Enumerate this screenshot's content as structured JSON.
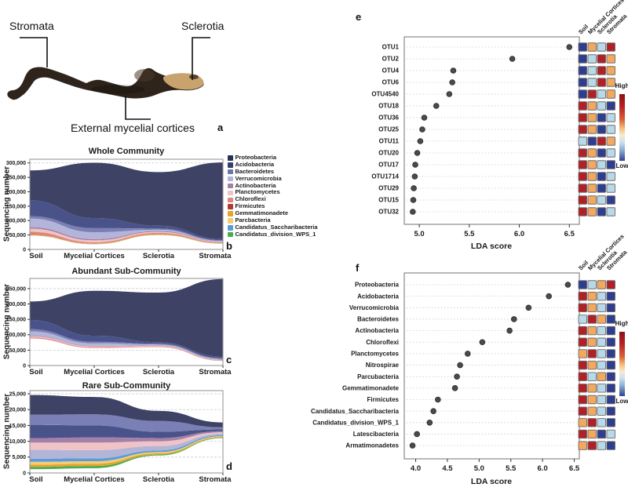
{
  "panel_a": {
    "letter": "a",
    "stromata": "Stromata",
    "sclerotia": "Sclerotia",
    "cortices": "External mycelial cortices"
  },
  "legend": {
    "items": [
      {
        "label": "Proteobacteria",
        "color": "#273156"
      },
      {
        "label": "Acidobacteria",
        "color": "#31406f"
      },
      {
        "label": "Bacteroidetes",
        "color": "#6f74ab"
      },
      {
        "label": "Verrucomicrobia",
        "color": "#b3b5d8"
      },
      {
        "label": "Actinobacteria",
        "color": "#a47fa8"
      },
      {
        "label": "Planctomycetes",
        "color": "#f0c4c6"
      },
      {
        "label": "Chloroflexi",
        "color": "#e0857a"
      },
      {
        "label": "Firmicutes",
        "color": "#ae3a33"
      },
      {
        "label": "Gemmatimonadete",
        "color": "#e8a230"
      },
      {
        "label": "Parcbacteria",
        "color": "#f2cd76"
      },
      {
        "label": "Candidatus_Saccharibacteria",
        "color": "#5b9cd6"
      },
      {
        "label": "Candidatus_division_WPS_1",
        "color": "#49ad4d"
      }
    ]
  },
  "heat_palette": {
    "R": "#b02026",
    "O": "#f3a85f",
    "L": "#b9d9e8",
    "B": "#2e3d8f"
  },
  "chart_data": [
    {
      "type": "area",
      "letter": "b",
      "title": "Whole Community",
      "ylabel": "Sequencing number",
      "categories": [
        "Soil",
        "Mycelial Cortices",
        "Sclerotia",
        "Stromata"
      ],
      "y_ticks": [
        0,
        50000,
        100000,
        150000,
        200000,
        250000,
        300000
      ],
      "y_tick_labels": [
        "0",
        "50,000",
        "100,000",
        "150,000",
        "200,000",
        "250,000",
        "300,000"
      ],
      "baseline": [
        48000,
        18000,
        50000,
        20000
      ],
      "series": [
        {
          "name": "Candidatus_division_WPS_1",
          "color": "#49ad4d",
          "values": [
            400,
            300,
            300,
            300
          ]
        },
        {
          "name": "Candidatus_Saccharibacteria",
          "color": "#5b9cd6",
          "values": [
            500,
            400,
            300,
            300
          ]
        },
        {
          "name": "Parcbacteria",
          "color": "#f2cd76",
          "values": [
            800,
            500,
            400,
            300
          ]
        },
        {
          "name": "Gemmatimonadete",
          "color": "#e8a230",
          "values": [
            2500,
            1500,
            2000,
            1000
          ]
        },
        {
          "name": "Firmicutes",
          "color": "#ae3a33",
          "values": [
            1000,
            600,
            500,
            400
          ]
        },
        {
          "name": "Chloroflexi",
          "color": "#e0857a",
          "values": [
            8000,
            3500,
            4000,
            2000
          ]
        },
        {
          "name": "Planctomycetes",
          "color": "#f0c4c6",
          "values": [
            11000,
            7000,
            3500,
            2000
          ]
        },
        {
          "name": "Actinobacteria",
          "color": "#a47fa8",
          "values": [
            5000,
            4000,
            2500,
            1500
          ]
        },
        {
          "name": "Verrucomicrobia",
          "color": "#b3b5d8",
          "values": [
            30000,
            24000,
            5000,
            2000
          ]
        },
        {
          "name": "Bacteroidetes",
          "color": "#7a7fb5",
          "values": [
            8000,
            14000,
            4000,
            2000
          ]
        },
        {
          "name": "Acidobacteria",
          "color": "#4a5389",
          "values": [
            55000,
            35000,
            10000,
            4000
          ]
        },
        {
          "name": "Proteobacteria",
          "color": "#3e4366",
          "values": [
            104000,
            192000,
            186000,
            266000
          ]
        }
      ]
    },
    {
      "type": "area",
      "letter": "c",
      "title": "Abundant Sub-Community",
      "ylabel": "Sequencing number",
      "categories": [
        "Soil",
        "Mycelial Cortices",
        "Sclerotia",
        "Stromata"
      ],
      "y_ticks": [
        0,
        50000,
        100000,
        150000,
        200000,
        250000
      ],
      "y_tick_labels": [
        "0",
        "50,000",
        "100,000",
        "150,000",
        "200,000",
        "250,000"
      ],
      "baseline": [
        88000,
        57000,
        60000,
        15000
      ],
      "series": [
        {
          "name": "Chloroflexi",
          "color": "#e0857a",
          "values": [
            3000,
            2500,
            2000,
            1500
          ]
        },
        {
          "name": "Planctomycetes",
          "color": "#f0c4c6",
          "values": [
            4000,
            3000,
            2000,
            1500
          ]
        },
        {
          "name": "Actinobacteria",
          "color": "#a47fa8",
          "values": [
            2000,
            1500,
            1000,
            1000
          ]
        },
        {
          "name": "Verrucomicrobia",
          "color": "#b3b5d8",
          "values": [
            14000,
            8000,
            3000,
            2500
          ]
        },
        {
          "name": "Bacteroidetes",
          "color": "#7a7fb5",
          "values": [
            7000,
            5000,
            3000,
            2500
          ]
        },
        {
          "name": "Acidobacteria",
          "color": "#4a5389",
          "values": [
            30000,
            20000,
            5000,
            5000
          ]
        },
        {
          "name": "Proteobacteria",
          "color": "#3e4366",
          "values": [
            60000,
            146000,
            161000,
            252000
          ]
        }
      ]
    },
    {
      "type": "area",
      "letter": "d",
      "title": "Rare Sub-Community",
      "ylabel": "Sequencing number",
      "categories": [
        "Soil",
        "Mycelial Cortices",
        "Sclerotia",
        "Stromata"
      ],
      "y_ticks": [
        0,
        5000,
        10000,
        15000,
        20000,
        25000
      ],
      "y_tick_labels": [
        "0",
        "5,000",
        "10,000",
        "15,000",
        "20,000",
        "25,000"
      ],
      "baseline": [
        1200,
        1500,
        5500,
        11000
      ],
      "series": [
        {
          "name": "Candidatus_division_WPS_1",
          "color": "#49ad4d",
          "values": [
            700,
            700,
            300,
            150
          ]
        },
        {
          "name": "Gemmatimonadete",
          "color": "#e8a230",
          "values": [
            700,
            700,
            400,
            250
          ]
        },
        {
          "name": "Parcbacteria",
          "color": "#f2cd76",
          "values": [
            900,
            800,
            400,
            250
          ]
        },
        {
          "name": "Candidatus_Saccharibacteria",
          "color": "#5b9cd6",
          "values": [
            1000,
            900,
            500,
            300
          ]
        },
        {
          "name": "Verrucomicrobia",
          "color": "#b3b5d8",
          "values": [
            2800,
            2600,
            1400,
            450
          ]
        },
        {
          "name": "Planctomycetes",
          "color": "#f0c4c6",
          "values": [
            2300,
            2400,
            1500,
            450
          ]
        },
        {
          "name": "Actinobacteria",
          "color": "#a47fa8",
          "values": [
            1400,
            1600,
            1000,
            350
          ]
        },
        {
          "name": "Acidobacteria",
          "color": "#4a5389",
          "values": [
            4200,
            3800,
            2000,
            550
          ]
        },
        {
          "name": "Bacteroidetes",
          "color": "#7a7fb5",
          "values": [
            3200,
            3500,
            3400,
            650
          ]
        },
        {
          "name": "Proteobacteria",
          "color": "#3e4366",
          "values": [
            6200,
            5500,
            3200,
            1550
          ]
        }
      ]
    },
    {
      "type": "dot",
      "letter": "e",
      "xlabel": "LDA score",
      "x_min": 4.85,
      "x_max": 6.6,
      "x_ticks": [
        5.0,
        5.5,
        6.0,
        6.5
      ],
      "x_tick_labels": [
        "5.0",
        "5.5",
        "6.0",
        "6.5"
      ],
      "columns": [
        "Soil",
        "Mycelial Cortices",
        "Sclerotia",
        "Stromata"
      ],
      "scale_high": "High",
      "scale_low": "Low",
      "rows": [
        {
          "label": "OTU1",
          "value": 6.5,
          "heat": [
            "B",
            "O",
            "L",
            "R"
          ]
        },
        {
          "label": "OTU2",
          "value": 5.93,
          "heat": [
            "B",
            "L",
            "R",
            "O"
          ]
        },
        {
          "label": "OTU4",
          "value": 5.34,
          "heat": [
            "B",
            "L",
            "R",
            "O"
          ]
        },
        {
          "label": "OTU6",
          "value": 5.33,
          "heat": [
            "B",
            "L",
            "R",
            "O"
          ]
        },
        {
          "label": "OTU4540",
          "value": 5.3,
          "heat": [
            "B",
            "R",
            "L",
            "O"
          ]
        },
        {
          "label": "OTU18",
          "value": 5.17,
          "heat": [
            "R",
            "O",
            "L",
            "B"
          ]
        },
        {
          "label": "OTU36",
          "value": 5.05,
          "heat": [
            "R",
            "O",
            "B",
            "L"
          ]
        },
        {
          "label": "OTU25",
          "value": 5.03,
          "heat": [
            "R",
            "O",
            "B",
            "L"
          ]
        },
        {
          "label": "OTU11",
          "value": 5.01,
          "heat": [
            "L",
            "B",
            "R",
            "O"
          ]
        },
        {
          "label": "OTU20",
          "value": 4.98,
          "heat": [
            "R",
            "O",
            "B",
            "L"
          ]
        },
        {
          "label": "OTU17",
          "value": 4.96,
          "heat": [
            "R",
            "O",
            "L",
            "B"
          ]
        },
        {
          "label": "OTU1714",
          "value": 4.955,
          "heat": [
            "R",
            "O",
            "B",
            "L"
          ]
        },
        {
          "label": "OTU29",
          "value": 4.945,
          "heat": [
            "R",
            "O",
            "B",
            "L"
          ]
        },
        {
          "label": "OTU15",
          "value": 4.94,
          "heat": [
            "R",
            "O",
            "L",
            "B"
          ]
        },
        {
          "label": "OTU32",
          "value": 4.935,
          "heat": [
            "R",
            "O",
            "B",
            "L"
          ]
        }
      ]
    },
    {
      "type": "dot",
      "letter": "f",
      "xlabel": "LDA score",
      "x_min": 3.82,
      "x_max": 6.58,
      "x_ticks": [
        4.0,
        4.5,
        5.0,
        5.5,
        6.0,
        6.5
      ],
      "x_tick_labels": [
        "4.0",
        "4.5",
        "5.0",
        "5.5",
        "6.0",
        "6.5"
      ],
      "columns": [
        "Soil",
        "Mycelial Cortices",
        "Sclerotia",
        "Stromata"
      ],
      "scale_high": "High",
      "scale_low": "Low",
      "rows": [
        {
          "label": "Proteobacteria",
          "value": 6.4,
          "heat": [
            "B",
            "L",
            "O",
            "R"
          ]
        },
        {
          "label": "Acidobacteria",
          "value": 6.1,
          "heat": [
            "R",
            "O",
            "L",
            "B"
          ]
        },
        {
          "label": "Verrucomicrobia",
          "value": 5.78,
          "heat": [
            "R",
            "O",
            "L",
            "B"
          ]
        },
        {
          "label": "Bacteroidetes",
          "value": 5.55,
          "heat": [
            "L",
            "R",
            "O",
            "B"
          ]
        },
        {
          "label": "Actinobacteria",
          "value": 5.48,
          "heat": [
            "R",
            "O",
            "L",
            "B"
          ]
        },
        {
          "label": "Chloroflexi",
          "value": 5.05,
          "heat": [
            "R",
            "O",
            "L",
            "B"
          ]
        },
        {
          "label": "Planctomycetes",
          "value": 4.82,
          "heat": [
            "O",
            "R",
            "L",
            "B"
          ]
        },
        {
          "label": "Nitrospirae",
          "value": 4.7,
          "heat": [
            "R",
            "O",
            "L",
            "B"
          ]
        },
        {
          "label": "Parcubacteria",
          "value": 4.65,
          "heat": [
            "R",
            "L",
            "O",
            "B"
          ]
        },
        {
          "label": "Gemmatimonadete",
          "value": 4.62,
          "heat": [
            "R",
            "O",
            "L",
            "B"
          ]
        },
        {
          "label": "Firmicutes",
          "value": 4.35,
          "heat": [
            "R",
            "O",
            "L",
            "B"
          ]
        },
        {
          "label": "Candidatus_Saccharibacteria",
          "value": 4.28,
          "heat": [
            "R",
            "O",
            "L",
            "B"
          ]
        },
        {
          "label": "Candidatus_division_WPS_1",
          "value": 4.22,
          "heat": [
            "O",
            "R",
            "L",
            "B"
          ]
        },
        {
          "label": "Latescibacteria",
          "value": 4.02,
          "heat": [
            "R",
            "O",
            "B",
            "L"
          ]
        },
        {
          "label": "Armatimonadetes",
          "value": 3.95,
          "heat": [
            "O",
            "R",
            "L",
            "B"
          ]
        }
      ]
    }
  ]
}
